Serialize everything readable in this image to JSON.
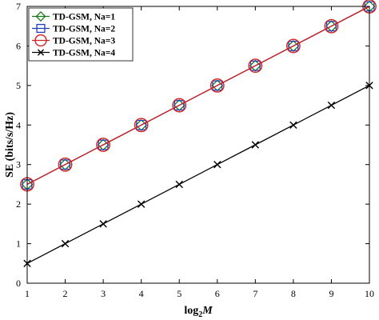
{
  "chart_data": {
    "type": "line",
    "xlabel_base": "log",
    "xlabel_sub": "2",
    "xlabel_var": "M",
    "ylabel": "SE (bits/s/Hz)",
    "xlim": [
      1,
      10
    ],
    "ylim": [
      0,
      7
    ],
    "x_ticks": [
      "1",
      "2",
      "3",
      "4",
      "5",
      "6",
      "7",
      "8",
      "9",
      "10"
    ],
    "y_ticks": [
      "0",
      "1",
      "2",
      "3",
      "4",
      "5",
      "6",
      "7"
    ],
    "grid": false,
    "legend_position": "top-left",
    "x": [
      1,
      2,
      3,
      4,
      5,
      6,
      7,
      8,
      9,
      10
    ],
    "series": [
      {
        "name": "TD-GSM, Na=1",
        "color": "#1a7a1a",
        "marker": "diamond",
        "values": [
          2.5,
          3.0,
          3.5,
          4.0,
          4.5,
          5.0,
          5.5,
          6.0,
          6.5,
          7.0
        ]
      },
      {
        "name": "TD-GSM, Na=2",
        "color": "#1f3fbf",
        "marker": "square",
        "values": [
          2.5,
          3.0,
          3.5,
          4.0,
          4.5,
          5.0,
          5.5,
          6.0,
          6.5,
          7.0
        ]
      },
      {
        "name": "TD-GSM, Na=3",
        "color": "#d42020",
        "marker": "circle",
        "values": [
          2.5,
          3.0,
          3.5,
          4.0,
          4.5,
          5.0,
          5.5,
          6.0,
          6.5,
          7.0
        ]
      },
      {
        "name": "TD-GSM, Na=4",
        "color": "#000000",
        "marker": "x",
        "values": [
          0.5,
          1.0,
          1.5,
          2.0,
          2.5,
          3.0,
          3.5,
          4.0,
          4.5,
          5.0
        ]
      }
    ]
  }
}
